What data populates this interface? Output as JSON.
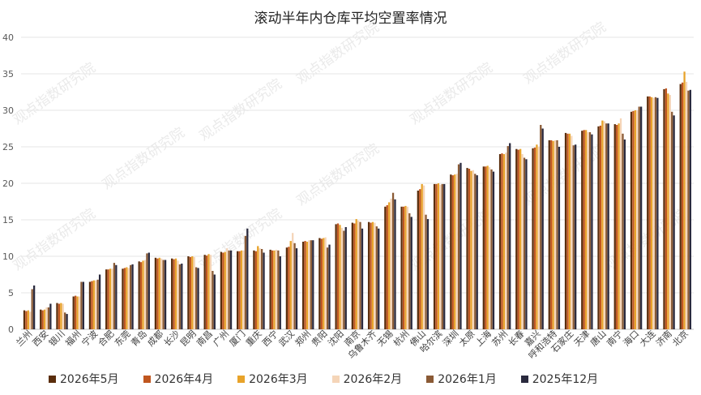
{
  "chart_data": {
    "type": "bar",
    "title": "滚动半年内仓库平均空置率情况",
    "ylim": [
      0,
      40
    ],
    "yticks": [
      0,
      5,
      10,
      15,
      20,
      25,
      30,
      35,
      40
    ],
    "grid": true,
    "legend_position": "bottom",
    "watermark": "观点指数研究院",
    "categories": [
      "兰州",
      "西安",
      "银川",
      "福州",
      "宁波",
      "合肥",
      "东莞",
      "青岛",
      "成都",
      "长沙",
      "昆明",
      "南昌",
      "广州",
      "厦门",
      "重庆",
      "西宁",
      "武汉",
      "郑州",
      "贵阳",
      "沈阳",
      "南京",
      "乌鲁木齐",
      "无锡",
      "杭州",
      "佛山",
      "哈尔滨",
      "深圳",
      "太原",
      "上海",
      "苏州",
      "长春",
      "嘉兴",
      "呼和浩特",
      "石家庄",
      "天津",
      "唐山",
      "南宁",
      "海口",
      "大连",
      "济南",
      "北京"
    ],
    "series": [
      {
        "name": "2026年5月",
        "color": "#5a2d0c",
        "values": [
          2.6,
          2.7,
          3.6,
          4.5,
          6.5,
          8.2,
          8.3,
          9.3,
          9.8,
          9.7,
          10.0,
          10.2,
          10.6,
          10.7,
          10.8,
          10.9,
          11.2,
          12.0,
          12.5,
          14.4,
          14.6,
          14.7,
          16.8,
          16.8,
          19.0,
          19.9,
          21.2,
          22.1,
          22.3,
          24.0,
          24.7,
          24.8,
          25.9,
          26.9,
          27.2,
          27.8,
          28.1,
          29.8,
          31.9,
          32.9,
          33.6
        ]
      },
      {
        "name": "2026年4月",
        "color": "#c0561f",
        "values": [
          2.5,
          2.6,
          3.5,
          4.6,
          6.6,
          8.2,
          8.4,
          9.2,
          9.7,
          9.6,
          9.9,
          10.1,
          10.5,
          10.7,
          10.7,
          10.8,
          11.3,
          12.1,
          12.4,
          14.5,
          14.5,
          14.6,
          17.0,
          16.8,
          19.2,
          19.9,
          21.1,
          22.0,
          22.3,
          24.1,
          24.6,
          24.9,
          25.9,
          26.8,
          27.3,
          27.9,
          28.0,
          29.9,
          31.9,
          33.0,
          33.8
        ]
      },
      {
        "name": "2026年3月",
        "color": "#e8a32a",
        "values": [
          2.6,
          2.7,
          3.6,
          4.5,
          6.7,
          8.3,
          8.5,
          9.4,
          9.8,
          9.7,
          10.0,
          10.3,
          10.6,
          10.8,
          11.4,
          10.8,
          12.1,
          12.0,
          12.5,
          14.3,
          15.1,
          14.7,
          17.4,
          16.9,
          19.9,
          20.0,
          21.2,
          21.7,
          22.4,
          24.0,
          24.7,
          25.3,
          25.8,
          26.8,
          27.3,
          28.6,
          28.2,
          30.0,
          31.8,
          32.3,
          35.3
        ]
      },
      {
        "name": "2026年2月",
        "color": "#f5d5b8",
        "values": [
          2.4,
          3.0,
          3.5,
          4.5,
          6.7,
          8.3,
          8.4,
          9.5,
          9.7,
          9.4,
          9.9,
          10.2,
          11.1,
          10.8,
          11.1,
          10.9,
          13.2,
          12.2,
          12.6,
          13.9,
          14.9,
          14.6,
          17.9,
          16.8,
          19.7,
          19.8,
          21.3,
          21.8,
          22.2,
          24.2,
          24.0,
          25.0,
          25.9,
          26.5,
          27.0,
          28.5,
          28.9,
          30.0,
          31.7,
          32.1,
          33.9
        ]
      },
      {
        "name": "2026年1月",
        "color": "#8a5a35",
        "values": [
          5.5,
          3.0,
          2.3,
          6.5,
          6.8,
          9.1,
          8.8,
          10.4,
          9.5,
          8.9,
          8.5,
          8.0,
          10.8,
          12.8,
          11.0,
          10.8,
          11.8,
          12.2,
          11.2,
          13.5,
          14.7,
          14.1,
          18.7,
          15.9,
          15.7,
          19.9,
          22.6,
          21.3,
          21.9,
          25.1,
          23.5,
          28.0,
          25.9,
          25.2,
          27.0,
          28.2,
          26.8,
          30.5,
          31.8,
          29.8,
          32.7
        ]
      },
      {
        "name": "2025年12月",
        "color": "#2a2a3e",
        "values": [
          6.0,
          3.5,
          2.1,
          6.5,
          7.5,
          8.8,
          8.9,
          10.5,
          9.5,
          9.0,
          8.4,
          7.5,
          10.8,
          13.8,
          10.5,
          10.0,
          11.1,
          12.2,
          11.6,
          14.0,
          13.8,
          13.8,
          17.8,
          15.4,
          15.1,
          19.9,
          22.8,
          21.1,
          21.6,
          25.5,
          23.3,
          27.5,
          25.0,
          25.3,
          26.7,
          28.2,
          26.0,
          30.5,
          31.7,
          29.3,
          32.8
        ]
      }
    ]
  }
}
